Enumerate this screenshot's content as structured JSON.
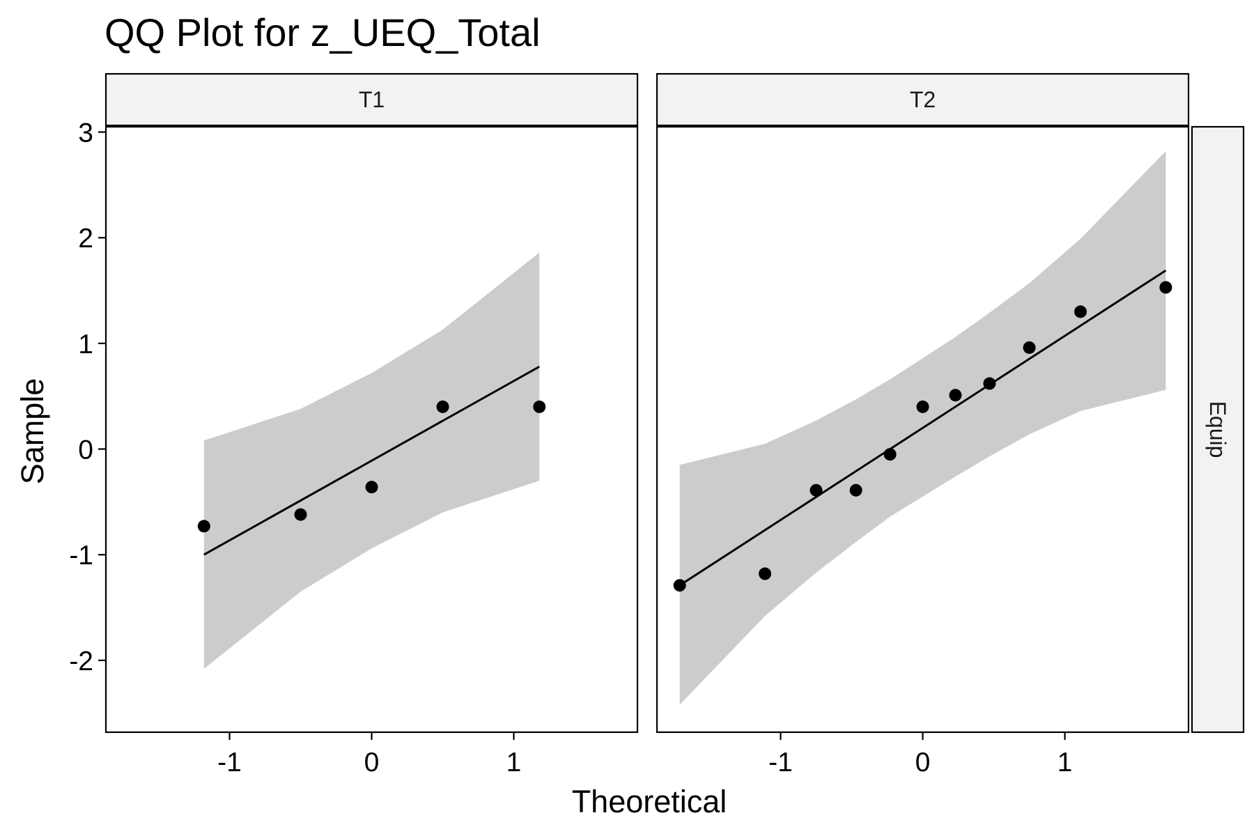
{
  "chart_data": {
    "type": "scatter",
    "title": "QQ Plot for z_UEQ_Total",
    "xlabel": "Theoretical",
    "ylabel": "Sample",
    "row_strip": "Equip",
    "xlim": [
      -1.87,
      1.87
    ],
    "ylim": [
      -2.68,
      3.05
    ],
    "x_ticks": [
      "-1",
      "0",
      "1"
    ],
    "y_ticks": [
      "3",
      "2",
      "1",
      "0",
      "-1",
      "-2"
    ],
    "grid": false,
    "panels": [
      {
        "strip": "T1",
        "points": [
          {
            "x": -1.18,
            "y": -0.73
          },
          {
            "x": -0.5,
            "y": -0.62
          },
          {
            "x": 0.0,
            "y": -0.36
          },
          {
            "x": 0.5,
            "y": 0.4
          },
          {
            "x": 1.18,
            "y": 0.4
          }
        ],
        "line": [
          {
            "x": -1.18,
            "y": -1.0
          },
          {
            "x": 1.18,
            "y": 0.78
          }
        ],
        "band_upper": [
          {
            "x": -1.18,
            "y": 0.08
          },
          {
            "x": -0.5,
            "y": 0.38
          },
          {
            "x": 0.0,
            "y": 0.72
          },
          {
            "x": 0.5,
            "y": 1.13
          },
          {
            "x": 1.18,
            "y": 1.86
          }
        ],
        "band_lower": [
          {
            "x": -1.18,
            "y": -2.08
          },
          {
            "x": -0.5,
            "y": -1.35
          },
          {
            "x": 0.0,
            "y": -0.94
          },
          {
            "x": 0.5,
            "y": -0.6
          },
          {
            "x": 1.18,
            "y": -0.3
          }
        ]
      },
      {
        "strip": "T2",
        "points": [
          {
            "x": -1.71,
            "y": -1.29
          },
          {
            "x": -1.11,
            "y": -1.18
          },
          {
            "x": -0.75,
            "y": -0.39
          },
          {
            "x": -0.47,
            "y": -0.39
          },
          {
            "x": -0.23,
            "y": -0.05
          },
          {
            "x": 0.0,
            "y": 0.4
          },
          {
            "x": 0.23,
            "y": 0.51
          },
          {
            "x": 0.47,
            "y": 0.62
          },
          {
            "x": 0.75,
            "y": 0.96
          },
          {
            "x": 1.11,
            "y": 1.3
          },
          {
            "x": 1.71,
            "y": 1.53
          }
        ],
        "line": [
          {
            "x": -1.71,
            "y": -1.29
          },
          {
            "x": 1.71,
            "y": 1.69
          }
        ],
        "band_upper": [
          {
            "x": -1.71,
            "y": -0.15
          },
          {
            "x": -1.11,
            "y": 0.05
          },
          {
            "x": -0.75,
            "y": 0.27
          },
          {
            "x": -0.47,
            "y": 0.47
          },
          {
            "x": -0.23,
            "y": 0.66
          },
          {
            "x": 0.0,
            "y": 0.86
          },
          {
            "x": 0.23,
            "y": 1.06
          },
          {
            "x": 0.47,
            "y": 1.29
          },
          {
            "x": 0.75,
            "y": 1.57
          },
          {
            "x": 1.11,
            "y": 1.99
          },
          {
            "x": 1.71,
            "y": 2.82
          }
        ],
        "band_lower": [
          {
            "x": -1.71,
            "y": -2.42
          },
          {
            "x": -1.11,
            "y": -1.58
          },
          {
            "x": -0.75,
            "y": -1.17
          },
          {
            "x": -0.47,
            "y": -0.88
          },
          {
            "x": -0.23,
            "y": -0.64
          },
          {
            "x": 0.0,
            "y": -0.45
          },
          {
            "x": 0.23,
            "y": -0.26
          },
          {
            "x": 0.47,
            "y": -0.07
          },
          {
            "x": 0.75,
            "y": 0.14
          },
          {
            "x": 1.11,
            "y": 0.36
          },
          {
            "x": 1.71,
            "y": 0.56
          }
        ]
      }
    ]
  }
}
